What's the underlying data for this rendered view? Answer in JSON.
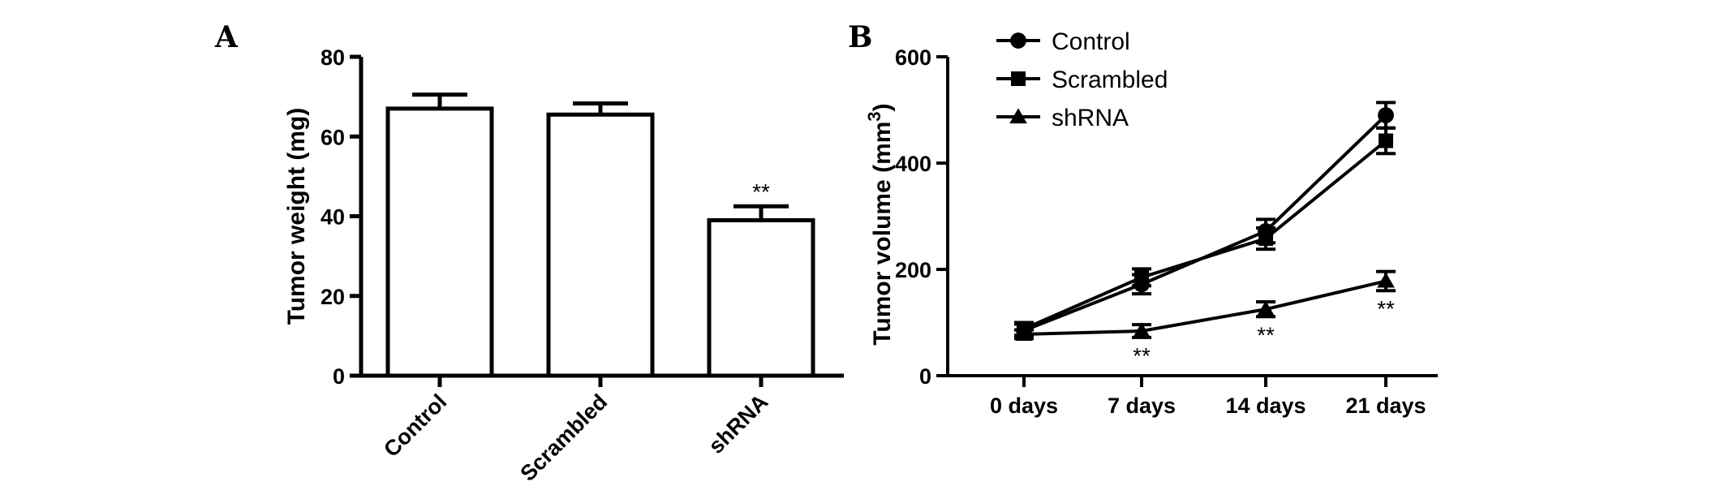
{
  "panels": {
    "a_label": "A",
    "b_label": "B"
  },
  "chart_data": [
    {
      "type": "bar",
      "ylabel": "Tumor weight (mg)",
      "ylim": [
        0,
        80
      ],
      "yticks": [
        0,
        20,
        40,
        60,
        80
      ],
      "categories": [
        "Control",
        "Scrambled",
        "shRNA"
      ],
      "values": [
        67,
        65.5,
        39
      ],
      "errors": [
        3.5,
        2.8,
        3.5
      ],
      "annotations": [
        {
          "category": "shRNA",
          "text": "**"
        }
      ],
      "colors": {
        "bar_fill": "#ffffff",
        "stroke": "#000000"
      }
    },
    {
      "type": "line",
      "ylabel": "Tumor volume (mm",
      "ylabel_superscript": "3",
      "ylabel_close": ")",
      "ylim": [
        0,
        600
      ],
      "yticks": [
        0,
        200,
        400,
        600
      ],
      "categories": [
        "0 days",
        "7 days",
        "14 days",
        "21 days"
      ],
      "legend_position": "top-left",
      "series": [
        {
          "name": "Control",
          "marker": "circle",
          "values": [
            85,
            172,
            272,
            490
          ],
          "errors": [
            12,
            18,
            22,
            24
          ]
        },
        {
          "name": "Scrambled",
          "marker": "square",
          "values": [
            88,
            185,
            258,
            442
          ],
          "errors": [
            12,
            16,
            20,
            24
          ]
        },
        {
          "name": "shRNA",
          "marker": "triangle",
          "values": [
            78,
            84,
            125,
            178
          ],
          "errors": [
            8,
            12,
            14,
            18
          ]
        }
      ],
      "annotations": [
        {
          "category": "7 days",
          "text": "**"
        },
        {
          "category": "14 days",
          "text": "**"
        },
        {
          "category": "21 days",
          "text": "**"
        }
      ]
    }
  ]
}
